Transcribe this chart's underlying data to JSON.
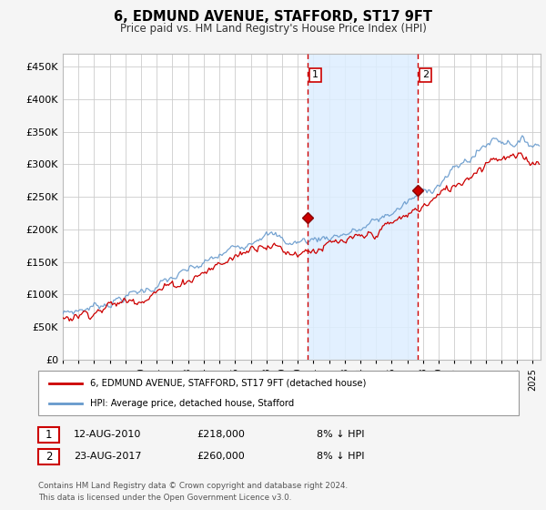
{
  "title": "6, EDMUND AVENUE, STAFFORD, ST17 9FT",
  "subtitle": "Price paid vs. HM Land Registry's House Price Index (HPI)",
  "yticks": [
    0,
    50000,
    100000,
    150000,
    200000,
    250000,
    300000,
    350000,
    400000,
    450000
  ],
  "ylim": [
    0,
    470000
  ],
  "xlim_start": 1995.0,
  "xlim_end": 2025.5,
  "bg_color": "#ffffff",
  "fig_bg": "#f5f5f5",
  "shade_color": "#ddeeff",
  "hpi_color": "#6699cc",
  "price_color": "#cc0000",
  "vline_color": "#cc0000",
  "transaction1_x": 2010.617,
  "transaction1_y": 218000,
  "transaction2_x": 2017.645,
  "transaction2_y": 260000,
  "legend_label_red": "6, EDMUND AVENUE, STAFFORD, ST17 9FT (detached house)",
  "legend_label_blue": "HPI: Average price, detached house, Stafford",
  "note1_date": "12-AUG-2010",
  "note1_price": "£218,000",
  "note1_hpi": "8% ↓ HPI",
  "note2_date": "23-AUG-2017",
  "note2_price": "£260,000",
  "note2_hpi": "8% ↓ HPI",
  "footer": "Contains HM Land Registry data © Crown copyright and database right 2024.\nThis data is licensed under the Open Government Licence v3.0."
}
